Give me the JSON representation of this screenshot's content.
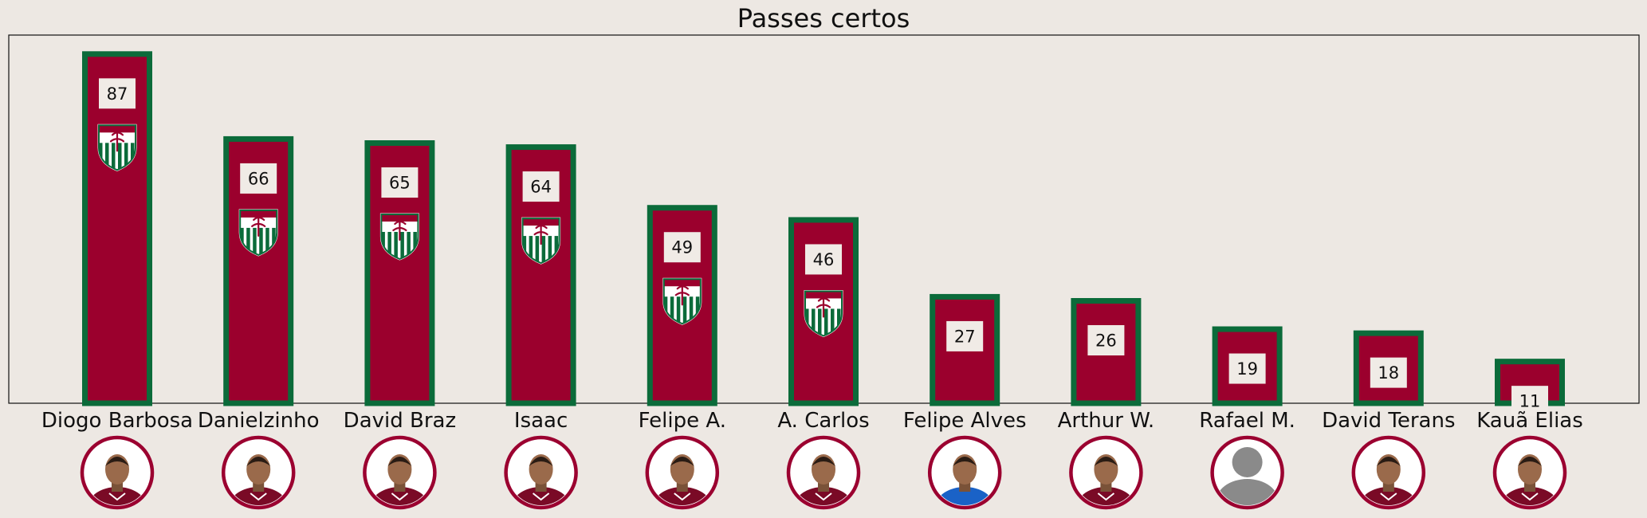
{
  "chart_data": {
    "type": "bar",
    "title": "Passes certos",
    "xlabel": "",
    "ylabel": "",
    "ylim": [
      0,
      91
    ],
    "grid": false,
    "categories": [
      "Diogo Barbosa",
      "Danielzinho",
      "David Braz",
      "Isaac",
      "Felipe A.",
      "A. Carlos",
      "Felipe Alves",
      "Arthur W.",
      "Rafael M.",
      "David Terans",
      "Kauã Elias"
    ],
    "values": [
      87,
      66,
      65,
      64,
      49,
      46,
      27,
      26,
      19,
      18,
      11
    ],
    "bar_has_crest": [
      true,
      true,
      true,
      true,
      true,
      true,
      false,
      false,
      false,
      false,
      false
    ],
    "player_photo": [
      "player-photo",
      "player-photo",
      "player-photo",
      "player-photo",
      "player-photo",
      "player-photo",
      "player-photo-goalkeeper",
      "player-photo",
      "avatar-placeholder",
      "player-photo",
      "player-photo"
    ],
    "colors": {
      "background": "#ede8e3",
      "bar_fill": "#9b002d",
      "bar_edge": "#0b6b3a",
      "label_box": "#f0ebe6",
      "photo_ring": "#9b0030",
      "crest_green": "#0b6b3a",
      "crest_red": "#9b002d"
    }
  }
}
